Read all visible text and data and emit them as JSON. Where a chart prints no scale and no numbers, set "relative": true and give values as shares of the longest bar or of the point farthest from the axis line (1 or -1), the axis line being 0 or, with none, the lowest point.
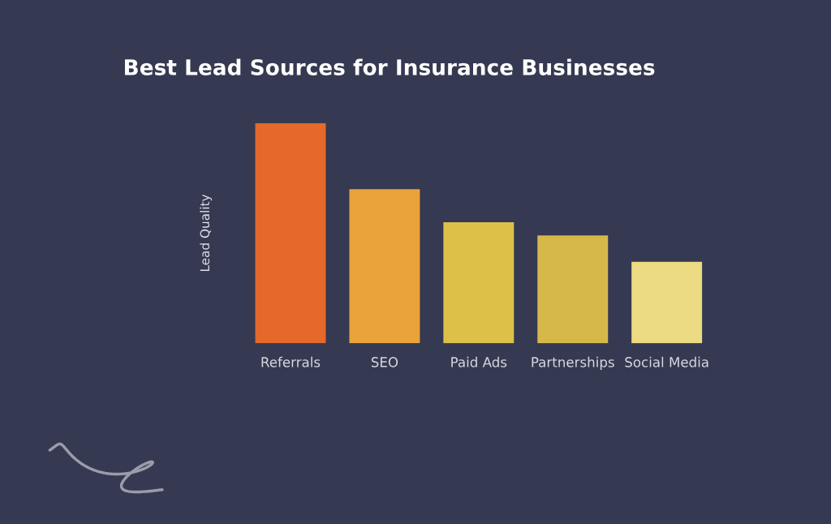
{
  "chart_data": {
    "type": "bar",
    "title": "Best Lead Sources for Insurance Businesses",
    "ylabel": "Lead Quality",
    "categories": [
      "Referrals",
      "SEO",
      "Paid Ads",
      "Partnerships",
      "Social Media"
    ],
    "values": [
      1,
      0.7,
      0.55,
      0.49,
      0.37
    ],
    "colors": [
      "#e4692a",
      "#eaa23a",
      "#dcc048",
      "#d6b84a",
      "#ecdb82"
    ],
    "relative": true,
    "grid": false,
    "legend": false
  }
}
